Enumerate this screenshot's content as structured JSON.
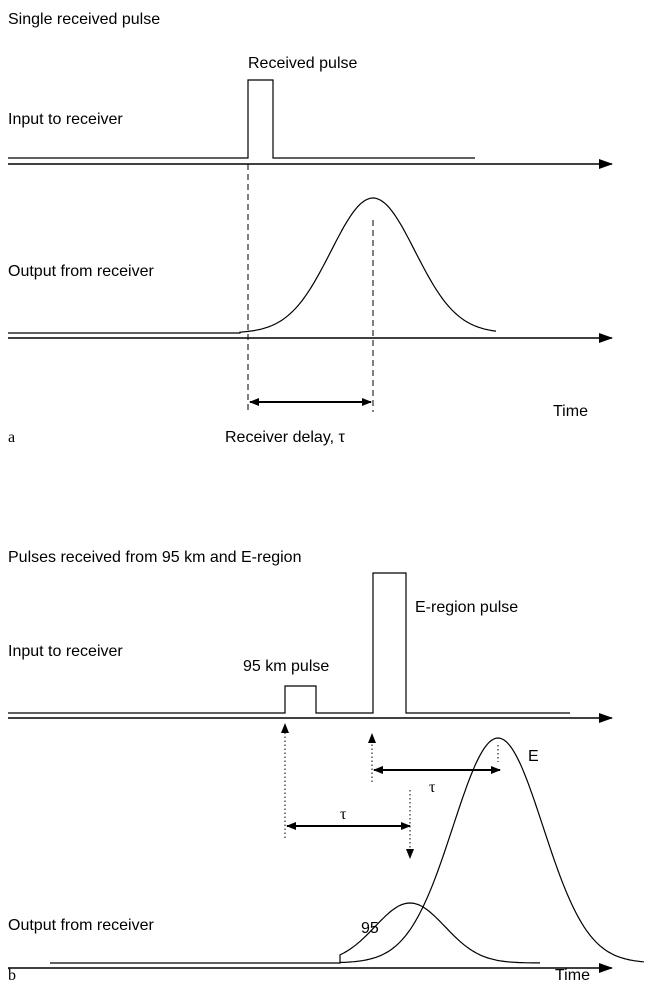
{
  "panel_a": {
    "title": "Single received pulse",
    "label": "a",
    "pulse_label": "Received pulse",
    "input_label": "Input to receiver",
    "output_label": "Output from receiver",
    "time_label": "Time",
    "delay_label": "Receiver delay, τ"
  },
  "panel_b": {
    "title": "Pulses received from 95 km and E-region",
    "label": "b",
    "e_pulse_label": "E-region pulse",
    "input_label": "Input to receiver",
    "km_pulse_label": "95 km pulse",
    "e_peak_label": "E",
    "tau_upper": "τ",
    "tau_lower": "τ",
    "output_label": "Output from receiver",
    "km_peak_label": "95",
    "time_label": "Time"
  }
}
